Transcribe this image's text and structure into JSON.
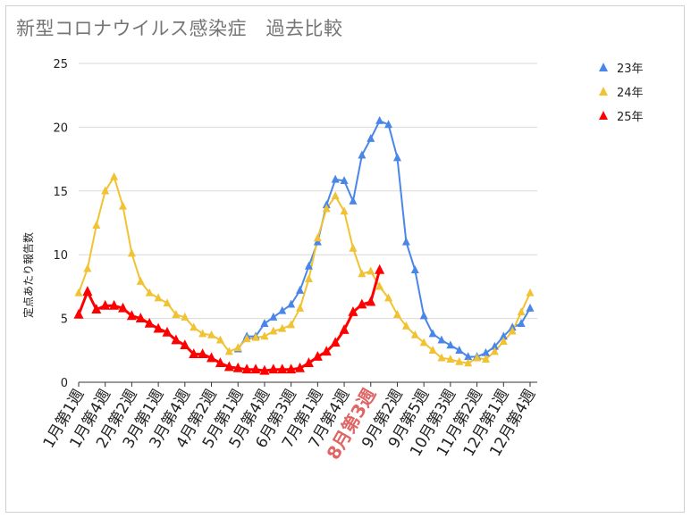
{
  "chart_data": {
    "type": "line",
    "title": "新型コロナウイルス感染症　過去比較",
    "ylabel": "定点あたり報告数",
    "xlabel": "",
    "ylim": [
      0,
      25
    ],
    "yticks": [
      0,
      5,
      10,
      15,
      20,
      25
    ],
    "grid": true,
    "legend_position": "top-right",
    "x_ticks_shown": [
      {
        "week": 1,
        "label": "1月第1週"
      },
      {
        "week": 4,
        "label": "1月第4週"
      },
      {
        "week": 7,
        "label": "2月第2週"
      },
      {
        "week": 10,
        "label": "3月第1週"
      },
      {
        "week": 13,
        "label": "3月第4週"
      },
      {
        "week": 16,
        "label": "4月第2週"
      },
      {
        "week": 19,
        "label": "5月第1週"
      },
      {
        "week": 22,
        "label": "5月第4週"
      },
      {
        "week": 25,
        "label": "6月第3週"
      },
      {
        "week": 28,
        "label": "7月第1週"
      },
      {
        "week": 31,
        "label": "7月第4週"
      },
      {
        "week": 34,
        "label": "8月第3週",
        "highlight": true
      },
      {
        "week": 37,
        "label": "9月第2週"
      },
      {
        "week": 40,
        "label": "9月第5週"
      },
      {
        "week": 43,
        "label": "10月第3週"
      },
      {
        "week": 46,
        "label": "11月第2週"
      },
      {
        "week": 49,
        "label": "12月第1週"
      },
      {
        "week": 52,
        "label": "12月第4週"
      }
    ],
    "series": [
      {
        "name": "23年",
        "color": "#4a86e8",
        "start_week": 19,
        "values": [
          2.6,
          3.6,
          3.6,
          4.6,
          5.1,
          5.6,
          6.1,
          7.2,
          9.1,
          11.0,
          13.9,
          15.9,
          15.8,
          14.2,
          17.8,
          19.1,
          20.5,
          20.2,
          17.6,
          11.0,
          8.8,
          5.2,
          3.8,
          3.3,
          2.9,
          2.5,
          2.0,
          2.0,
          2.3,
          2.8,
          3.6,
          4.3,
          4.6,
          5.8
        ]
      },
      {
        "name": "24年",
        "color": "#f1c232",
        "start_week": 1,
        "values": [
          7.0,
          8.9,
          12.3,
          15.0,
          16.1,
          13.8,
          10.1,
          7.9,
          7.0,
          6.6,
          6.2,
          5.3,
          5.1,
          4.3,
          3.8,
          3.7,
          3.3,
          2.4,
          2.7,
          3.4,
          3.5,
          3.6,
          4.0,
          4.2,
          4.5,
          5.8,
          8.1,
          11.3,
          13.6,
          14.6,
          13.4,
          10.5,
          8.5,
          8.7,
          7.5,
          6.6,
          5.3,
          4.4,
          3.7,
          3.1,
          2.5,
          1.9,
          1.8,
          1.6,
          1.5,
          1.9,
          1.8,
          2.4,
          3.2,
          4.0,
          5.5,
          7.0
        ]
      },
      {
        "name": "25年",
        "color": "#ff0000",
        "start_week": 1,
        "values": [
          5.3,
          7.1,
          5.7,
          6.0,
          6.0,
          5.8,
          5.2,
          5.0,
          4.6,
          4.2,
          3.9,
          3.3,
          2.9,
          2.2,
          2.2,
          1.9,
          1.5,
          1.2,
          1.1,
          1.0,
          1.0,
          0.9,
          1.0,
          1.0,
          1.0,
          1.1,
          1.5,
          2.0,
          2.4,
          3.1,
          4.1,
          5.5,
          6.1,
          6.3,
          8.8
        ]
      }
    ]
  }
}
